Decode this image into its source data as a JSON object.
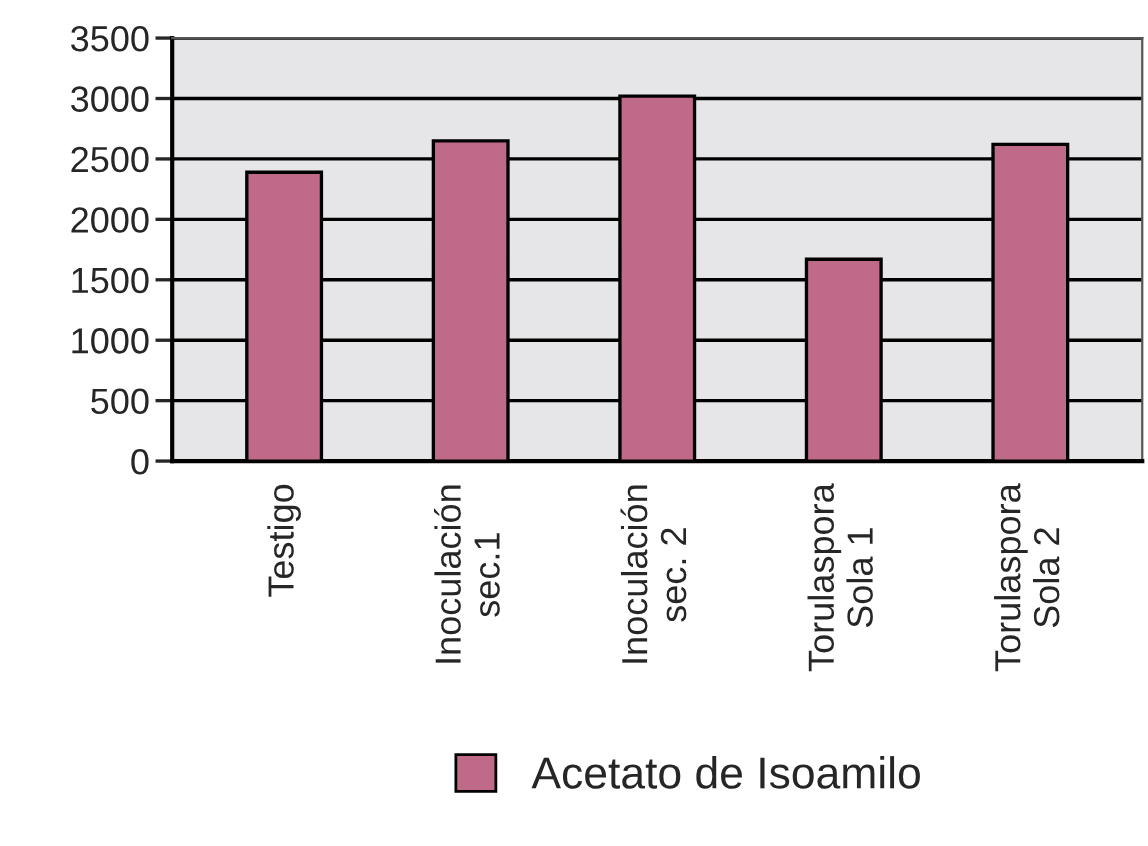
{
  "chart_data": {
    "type": "bar",
    "categories": [
      "Testigo",
      "Inoculación\nsec.1",
      "Inoculación\nsec. 2",
      "Torulaspora\nSola 1",
      "Torulaspora\nSola 2"
    ],
    "series": [
      {
        "name": "Acetato de Isoamilo",
        "color": "#c06a8a",
        "values": [
          2390,
          2650,
          3020,
          1670,
          2620
        ]
      }
    ],
    "ylim": [
      0,
      3500
    ],
    "yticks": [
      0,
      500,
      1000,
      1500,
      2000,
      2500,
      3000,
      3500
    ],
    "grid": "y",
    "legend": "bottom"
  }
}
